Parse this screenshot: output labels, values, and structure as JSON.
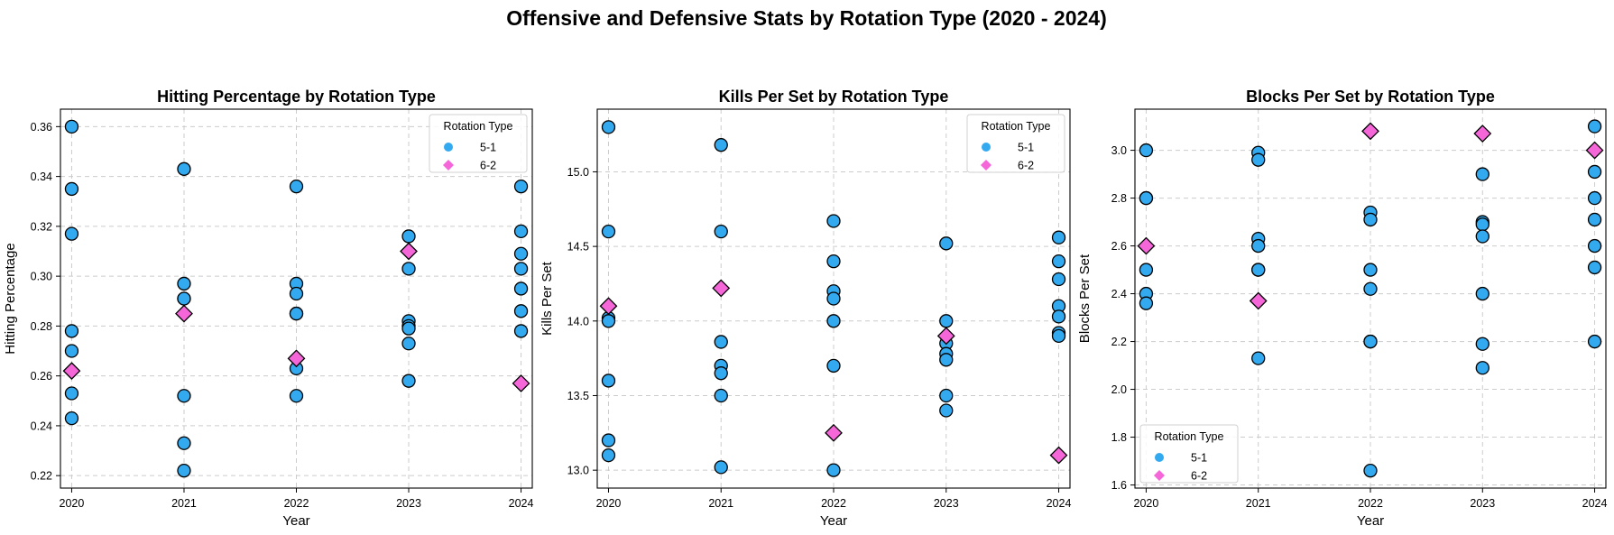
{
  "figure": {
    "title": "Offensive and Defensive Stats by Rotation Type (2020 - 2024)"
  },
  "colors": {
    "series_5_1": "#33aaf0",
    "series_6_2": "#f566d9",
    "marker_edge": "#000000",
    "grid": "#cccccc"
  },
  "chart_data": [
    {
      "type": "scatter",
      "title": "Hitting Percentage by Rotation Type",
      "xlabel": "Year",
      "ylabel": "Hitting Percentage",
      "xlim": [
        2019.9,
        2024.1
      ],
      "ylim": [
        0.215,
        0.367
      ],
      "x_ticks": [
        2020,
        2021,
        2022,
        2023,
        2024
      ],
      "y_ticks": [
        0.22,
        0.24,
        0.26,
        0.28,
        0.3,
        0.32,
        0.34,
        0.36
      ],
      "y_tick_labels": [
        "0.22",
        "0.24",
        "0.26",
        "0.28",
        "0.30",
        "0.32",
        "0.34",
        "0.36"
      ],
      "grid": true,
      "legend": {
        "title": "Rotation Type",
        "placement": "upper right"
      },
      "series": [
        {
          "name": "5-1",
          "marker": "circle",
          "points": [
            [
              2020,
              0.36
            ],
            [
              2020,
              0.335
            ],
            [
              2020,
              0.317
            ],
            [
              2020,
              0.278
            ],
            [
              2020,
              0.27
            ],
            [
              2020,
              0.253
            ],
            [
              2020,
              0.243
            ],
            [
              2021,
              0.343
            ],
            [
              2021,
              0.297
            ],
            [
              2021,
              0.291
            ],
            [
              2021,
              0.291
            ],
            [
              2021,
              0.252
            ],
            [
              2021,
              0.233
            ],
            [
              2021,
              0.222
            ],
            [
              2022,
              0.336
            ],
            [
              2022,
              0.297
            ],
            [
              2022,
              0.293
            ],
            [
              2022,
              0.285
            ],
            [
              2022,
              0.285
            ],
            [
              2022,
              0.263
            ],
            [
              2022,
              0.252
            ],
            [
              2023,
              0.316
            ],
            [
              2023,
              0.303
            ],
            [
              2023,
              0.282
            ],
            [
              2023,
              0.28
            ],
            [
              2023,
              0.279
            ],
            [
              2023,
              0.273
            ],
            [
              2023,
              0.258
            ],
            [
              2024,
              0.336
            ],
            [
              2024,
              0.318
            ],
            [
              2024,
              0.309
            ],
            [
              2024,
              0.303
            ],
            [
              2024,
              0.295
            ],
            [
              2024,
              0.286
            ],
            [
              2024,
              0.278
            ]
          ]
        },
        {
          "name": "6-2",
          "marker": "diamond",
          "points": [
            [
              2020,
              0.262
            ],
            [
              2021,
              0.285
            ],
            [
              2022,
              0.267
            ],
            [
              2023,
              0.31
            ],
            [
              2024,
              0.257
            ]
          ]
        }
      ]
    },
    {
      "type": "scatter",
      "title": "Kills Per Set by Rotation Type",
      "xlabel": "Year",
      "ylabel": "Kills Per Set",
      "xlim": [
        2019.9,
        2024.1
      ],
      "ylim": [
        12.88,
        15.42
      ],
      "x_ticks": [
        2020,
        2021,
        2022,
        2023,
        2024
      ],
      "y_ticks": [
        13.0,
        13.5,
        14.0,
        14.5,
        15.0
      ],
      "y_tick_labels": [
        "13.0",
        "13.5",
        "14.0",
        "14.5",
        "15.0"
      ],
      "grid": true,
      "legend": {
        "title": "Rotation Type",
        "placement": "upper right"
      },
      "series": [
        {
          "name": "5-1",
          "marker": "circle",
          "points": [
            [
              2020,
              15.3
            ],
            [
              2020,
              14.6
            ],
            [
              2020,
              14.02
            ],
            [
              2020,
              14.0
            ],
            [
              2020,
              13.6
            ],
            [
              2020,
              13.2
            ],
            [
              2020,
              13.1
            ],
            [
              2021,
              15.18
            ],
            [
              2021,
              14.6
            ],
            [
              2021,
              13.86
            ],
            [
              2021,
              13.7
            ],
            [
              2021,
              13.65
            ],
            [
              2021,
              13.5
            ],
            [
              2021,
              13.02
            ],
            [
              2022,
              14.67
            ],
            [
              2022,
              14.4
            ],
            [
              2022,
              14.2
            ],
            [
              2022,
              14.15
            ],
            [
              2022,
              14.0
            ],
            [
              2022,
              13.7
            ],
            [
              2022,
              13.0
            ],
            [
              2023,
              14.52
            ],
            [
              2023,
              14.0
            ],
            [
              2023,
              13.85
            ],
            [
              2023,
              13.78
            ],
            [
              2023,
              13.74
            ],
            [
              2023,
              13.5
            ],
            [
              2023,
              13.4
            ],
            [
              2024,
              14.56
            ],
            [
              2024,
              14.4
            ],
            [
              2024,
              14.28
            ],
            [
              2024,
              14.1
            ],
            [
              2024,
              14.03
            ],
            [
              2024,
              13.92
            ],
            [
              2024,
              13.9
            ]
          ]
        },
        {
          "name": "6-2",
          "marker": "diamond",
          "points": [
            [
              2020,
              14.1
            ],
            [
              2021,
              14.22
            ],
            [
              2022,
              13.25
            ],
            [
              2023,
              13.9
            ],
            [
              2024,
              13.1
            ]
          ]
        }
      ]
    },
    {
      "type": "scatter",
      "title": "Blocks Per Set by Rotation Type",
      "xlabel": "Year",
      "ylabel": "Blocks Per Set",
      "xlim": [
        2019.9,
        2024.1
      ],
      "ylim": [
        1.587,
        3.172
      ],
      "x_ticks": [
        2020,
        2021,
        2022,
        2023,
        2024
      ],
      "y_ticks": [
        1.6,
        1.8,
        2.0,
        2.2,
        2.4,
        2.6,
        2.8,
        3.0
      ],
      "y_tick_labels": [
        "1.6",
        "1.8",
        "2.0",
        "2.2",
        "2.4",
        "2.6",
        "2.8",
        "3.0"
      ],
      "grid": true,
      "legend": {
        "title": "Rotation Type",
        "placement": "lower left"
      },
      "series": [
        {
          "name": "5-1",
          "marker": "circle",
          "points": [
            [
              2020,
              3.0
            ],
            [
              2020,
              2.8
            ],
            [
              2020,
              2.8
            ],
            [
              2020,
              2.5
            ],
            [
              2020,
              2.4
            ],
            [
              2020,
              2.36
            ],
            [
              2021,
              2.99
            ],
            [
              2021,
              2.96
            ],
            [
              2021,
              2.63
            ],
            [
              2021,
              2.6
            ],
            [
              2021,
              2.5
            ],
            [
              2021,
              2.5
            ],
            [
              2021,
              2.13
            ],
            [
              2022,
              2.74
            ],
            [
              2022,
              2.71
            ],
            [
              2022,
              2.5
            ],
            [
              2022,
              2.42
            ],
            [
              2022,
              2.2
            ],
            [
              2022,
              2.2
            ],
            [
              2022,
              1.66
            ],
            [
              2023,
              2.9
            ],
            [
              2023,
              2.7
            ],
            [
              2023,
              2.69
            ],
            [
              2023,
              2.64
            ],
            [
              2023,
              2.4
            ],
            [
              2023,
              2.19
            ],
            [
              2023,
              2.09
            ],
            [
              2024,
              3.1
            ],
            [
              2024,
              2.91
            ],
            [
              2024,
              2.8
            ],
            [
              2024,
              2.71
            ],
            [
              2024,
              2.6
            ],
            [
              2024,
              2.51
            ],
            [
              2024,
              2.2
            ]
          ]
        },
        {
          "name": "6-2",
          "marker": "diamond",
          "points": [
            [
              2020,
              2.6
            ],
            [
              2021,
              2.37
            ],
            [
              2022,
              3.08
            ],
            [
              2023,
              3.07
            ],
            [
              2024,
              3.0
            ]
          ]
        }
      ]
    }
  ]
}
